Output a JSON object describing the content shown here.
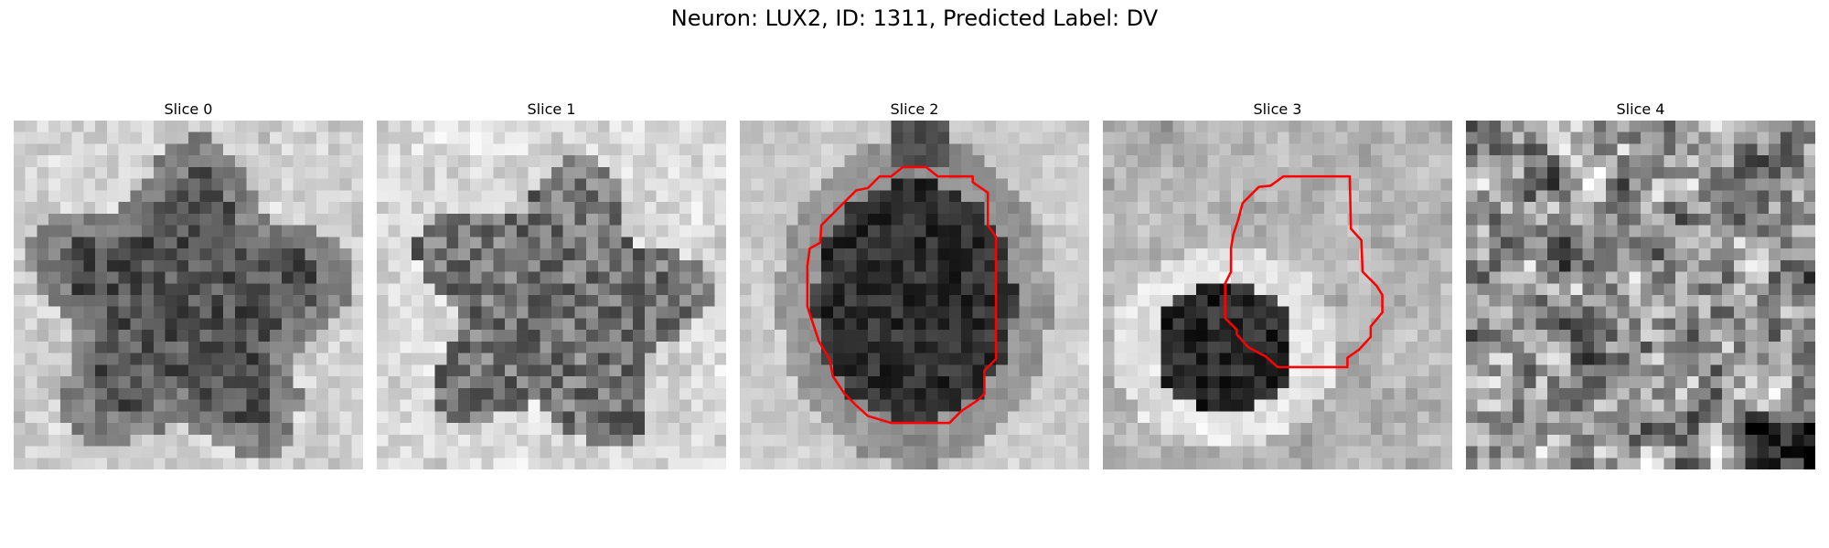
{
  "figure": {
    "title": "Neuron: LUX2, ID: 1311, Predicted Label: DV"
  },
  "panels": [
    {
      "title": "Slice 0",
      "contour_color": "#ff0000",
      "has_contour": false
    },
    {
      "title": "Slice 1",
      "contour_color": "#ff0000",
      "has_contour": false
    },
    {
      "title": "Slice 2",
      "contour_color": "#ff0000",
      "has_contour": true
    },
    {
      "title": "Slice 3",
      "contour_color": "#ff0000",
      "has_contour": true
    },
    {
      "title": "Slice 4",
      "contour_color": "#ff0000",
      "has_contour": false
    }
  ]
}
